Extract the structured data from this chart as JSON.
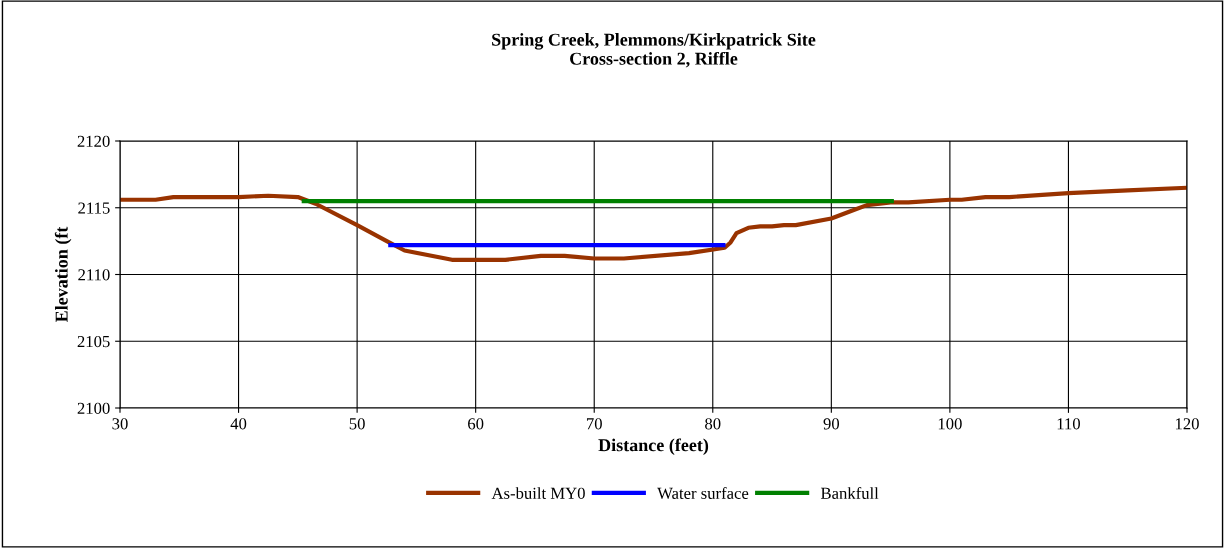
{
  "chart_data": {
    "type": "line",
    "title": "Spring Creek, Plemmons/Kirkpatrick Site\nCross-section 2, Riffle",
    "xlabel": "Distance (feet)",
    "ylabel": "Elevation (ft",
    "xlim": [
      30,
      120
    ],
    "xticks": [
      30,
      40,
      50,
      60,
      70,
      80,
      90,
      100,
      110,
      120
    ],
    "ylim": [
      2100,
      2120
    ],
    "yticks": [
      2100,
      2105,
      2110,
      2115,
      2120
    ],
    "grid": true,
    "legend": "bottom",
    "marker": "none",
    "line_style": "solid",
    "series": [
      {
        "name": "As-built MY0",
        "color": "#993300",
        "x": [
          30,
          33,
          34.5,
          40,
          42.5,
          45,
          46.5,
          50,
          52.5,
          54,
          58,
          62.5,
          65.5,
          67.5,
          70,
          72.5,
          78,
          81,
          81.5,
          82,
          83,
          84,
          85,
          86,
          87,
          90,
          91.5,
          93,
          95,
          96.5,
          100,
          101,
          103,
          105,
          110,
          115,
          120
        ],
        "values": [
          2115.6,
          2115.6,
          2115.8,
          2115.8,
          2115.9,
          2115.8,
          2115.3,
          2113.7,
          2112.5,
          2111.8,
          2111.1,
          2111.1,
          2111.4,
          2111.4,
          2111.2,
          2111.2,
          2111.6,
          2112.0,
          2112.4,
          2113.1,
          2113.5,
          2113.6,
          2113.6,
          2113.7,
          2113.7,
          2114.2,
          2114.7,
          2115.2,
          2115.4,
          2115.4,
          2115.6,
          2115.6,
          2115.8,
          2115.8,
          2116.1,
          2116.3,
          2116.5
        ]
      },
      {
        "name": "Water surface",
        "color": "#0000ff",
        "x": [
          52.8,
          80.9
        ],
        "values": [
          2112.2,
          2112.2
        ]
      },
      {
        "name": "Bankfull",
        "color": "#008000",
        "x": [
          45.5,
          95.1
        ],
        "values": [
          2115.5,
          2115.5
        ]
      }
    ]
  }
}
